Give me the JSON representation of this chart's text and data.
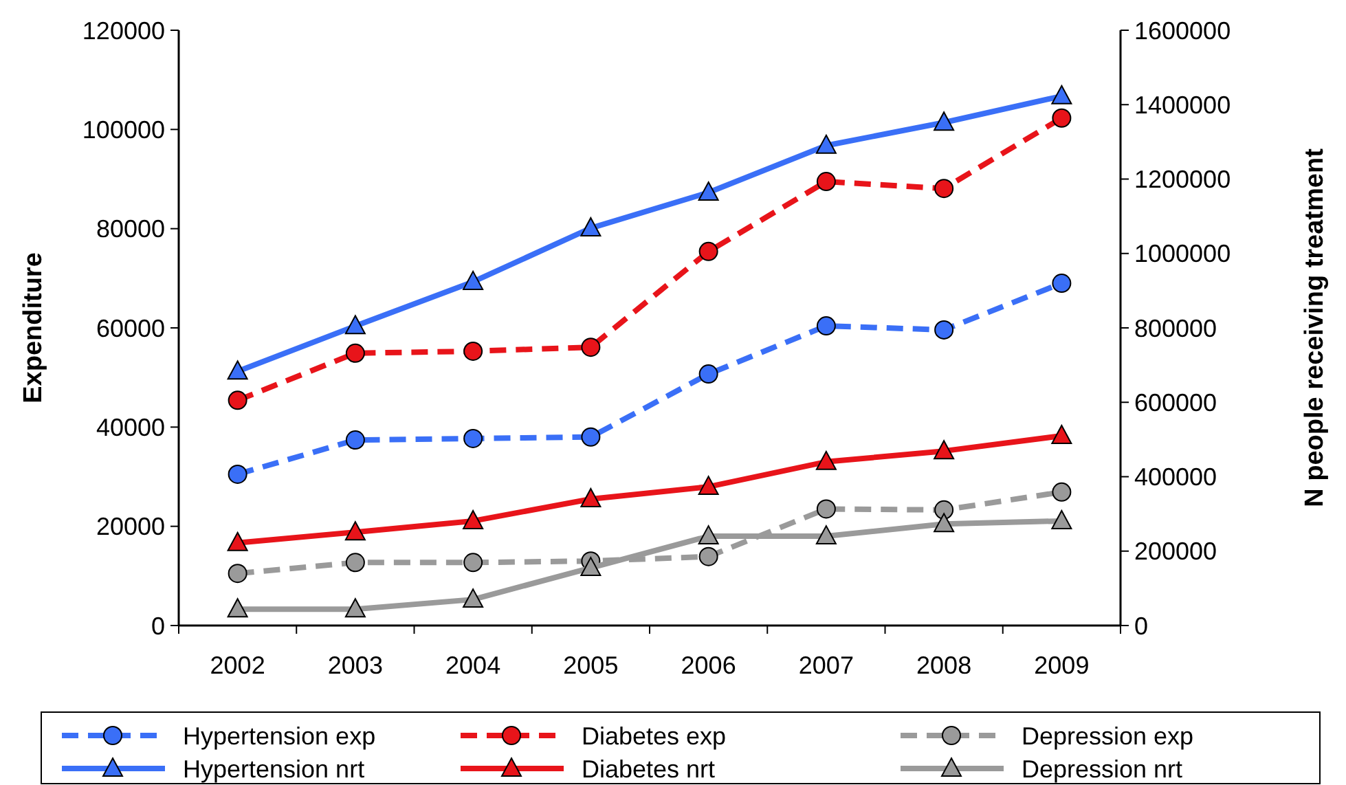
{
  "chart_data": {
    "type": "line",
    "ylabel": "Expenditure",
    "y2label": "N people receiving treatment",
    "categories": [
      "2002",
      "2003",
      "2004",
      "2005",
      "2006",
      "2007",
      "2008",
      "2009"
    ],
    "ylim": [
      0,
      120000
    ],
    "yticks": [
      0,
      20000,
      40000,
      60000,
      80000,
      100000,
      120000
    ],
    "y2lim": [
      0,
      1600000
    ],
    "y2ticks": [
      0,
      200000,
      400000,
      600000,
      800000,
      1000000,
      1200000,
      1400000,
      1600000
    ],
    "grid": false,
    "legend": "bottom",
    "series": [
      {
        "name": "Hypertension exp",
        "color": "#3a6ff7",
        "marker": "circle",
        "line_style": "dashed",
        "values": [
          30500,
          37400,
          37700,
          38000,
          50700,
          60400,
          59600,
          69000
        ]
      },
      {
        "name": "Diabetes exp",
        "color": "#e8141a",
        "marker": "circle",
        "line_style": "dashed",
        "values": [
          45400,
          54900,
          55300,
          56100,
          75400,
          89500,
          88100,
          102300
        ]
      },
      {
        "name": "Depression exp",
        "color": "#9a9a9a",
        "marker": "circle",
        "line_style": "dashed",
        "values": [
          10500,
          12700,
          12700,
          13000,
          13900,
          23500,
          23300,
          26900
        ]
      },
      {
        "name": "Hypertension nrt",
        "color": "#3a6ff7",
        "marker": "triangle",
        "line_style": "solid",
        "axis": "y2",
        "values": [
          683000,
          805000,
          924000,
          1068000,
          1164000,
          1290000,
          1352000,
          1423000
        ]
      },
      {
        "name": "Diabetes nrt",
        "color": "#e8141a",
        "marker": "triangle",
        "line_style": "solid",
        "axis": "y2",
        "values": [
          222000,
          251000,
          281000,
          340000,
          373000,
          440000,
          469000,
          510000
        ]
      },
      {
        "name": "Depression nrt",
        "color": "#9a9a9a",
        "marker": "triangle",
        "line_style": "solid",
        "axis": "y2",
        "values": [
          44000,
          44000,
          70000,
          155000,
          240000,
          240000,
          273000,
          281000
        ]
      }
    ]
  }
}
